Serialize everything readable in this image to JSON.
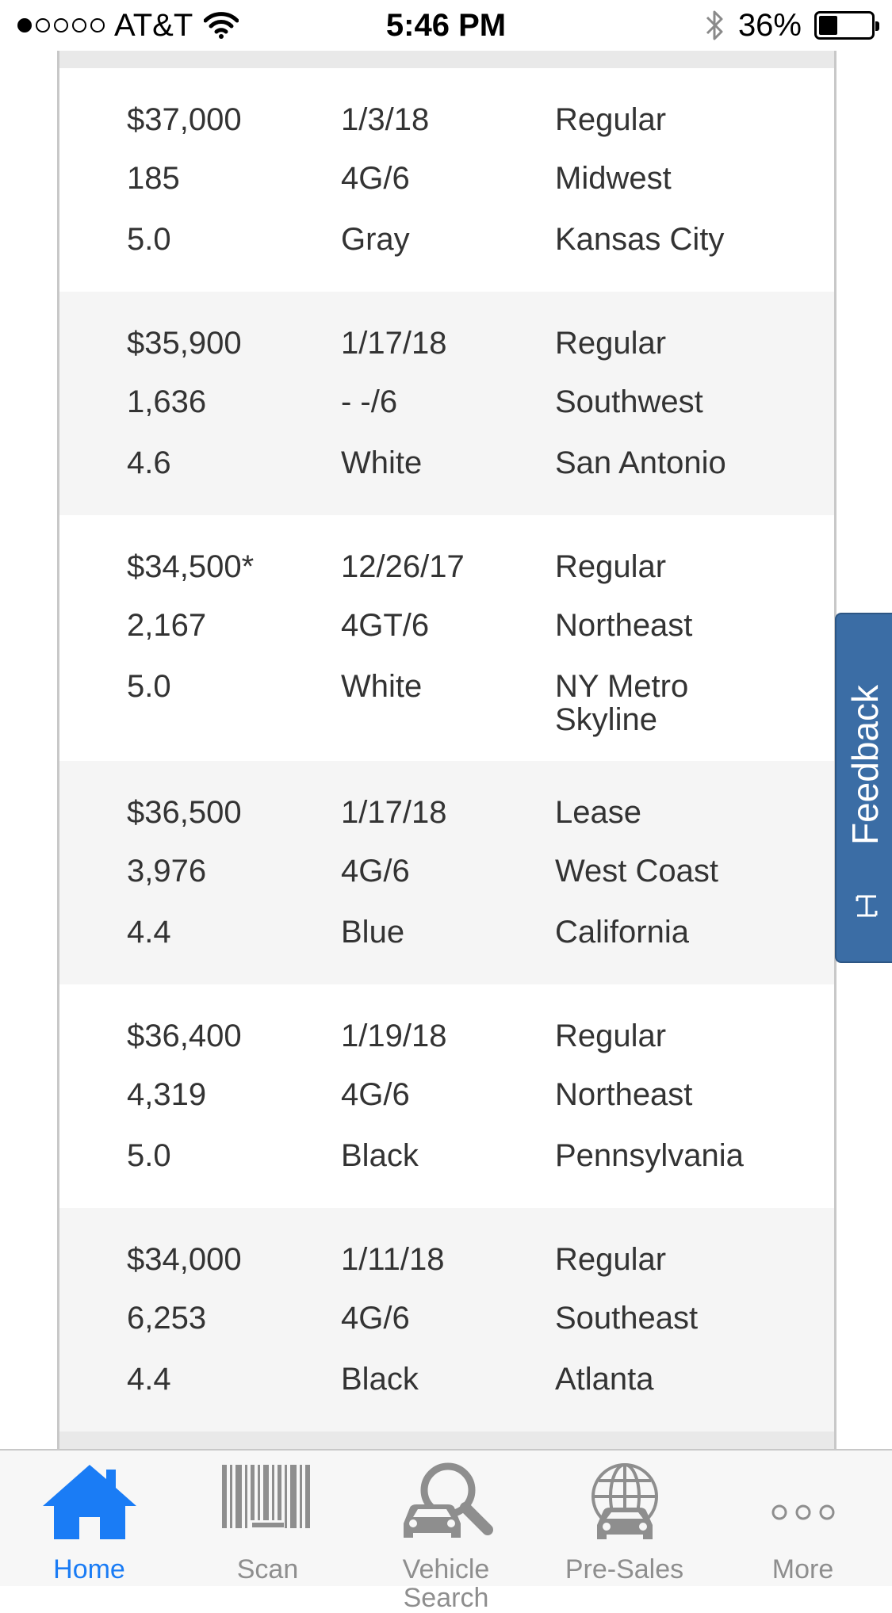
{
  "status_bar": {
    "carrier": "AT&T",
    "time": "5:46 PM",
    "battery": "36%",
    "battery_level": 0.36
  },
  "records": [
    {
      "price": "$37,000",
      "date": "1/3/18",
      "type": "Regular",
      "miles": "185",
      "engine": "4G/6",
      "region": "Midwest",
      "grade": "5.0",
      "color": "Gray",
      "location": "Kansas City"
    },
    {
      "price": "$35,900",
      "date": "1/17/18",
      "type": "Regular",
      "miles": "1,636",
      "engine": "- -/6",
      "region": "Southwest",
      "grade": "4.6",
      "color": "White",
      "location": "San Antonio"
    },
    {
      "price": "$34,500*",
      "date": "12/26/17",
      "type": "Regular",
      "miles": "2,167",
      "engine": "4GT/6",
      "region": "Northeast",
      "grade": "5.0",
      "color": "White",
      "location": "NY Metro Skyline"
    },
    {
      "price": "$36,500",
      "date": "1/17/18",
      "type": "Lease",
      "miles": "3,976",
      "engine": "4G/6",
      "region": "West Coast",
      "grade": "4.4",
      "color": "Blue",
      "location": "California"
    },
    {
      "price": "$36,400",
      "date": "1/19/18",
      "type": "Regular",
      "miles": "4,319",
      "engine": "4G/6",
      "region": "Northeast",
      "grade": "5.0",
      "color": "Black",
      "location": "Pennsylvania"
    },
    {
      "price": "$34,000",
      "date": "1/11/18",
      "type": "Regular",
      "miles": "6,253",
      "engine": "4G/6",
      "region": "Southeast",
      "grade": "4.4",
      "color": "Black",
      "location": "Atlanta"
    }
  ],
  "feedback": {
    "label": "Feedback"
  },
  "tabs": [
    {
      "label": "Home",
      "icon": "home-icon"
    },
    {
      "label": "Scan",
      "icon": "barcode-icon"
    },
    {
      "label": "Vehicle Search",
      "icon": "vehicle-search-icon"
    },
    {
      "label": "Pre-Sales",
      "icon": "globe-car-icon"
    },
    {
      "label": "More",
      "icon": "more-icon"
    }
  ],
  "colors": {
    "active_tab": "#1a7cf5",
    "inactive_tab": "#8e8e8e",
    "feedback_bg": "#3b6da5",
    "row_alt": "#f5f5f5"
  }
}
